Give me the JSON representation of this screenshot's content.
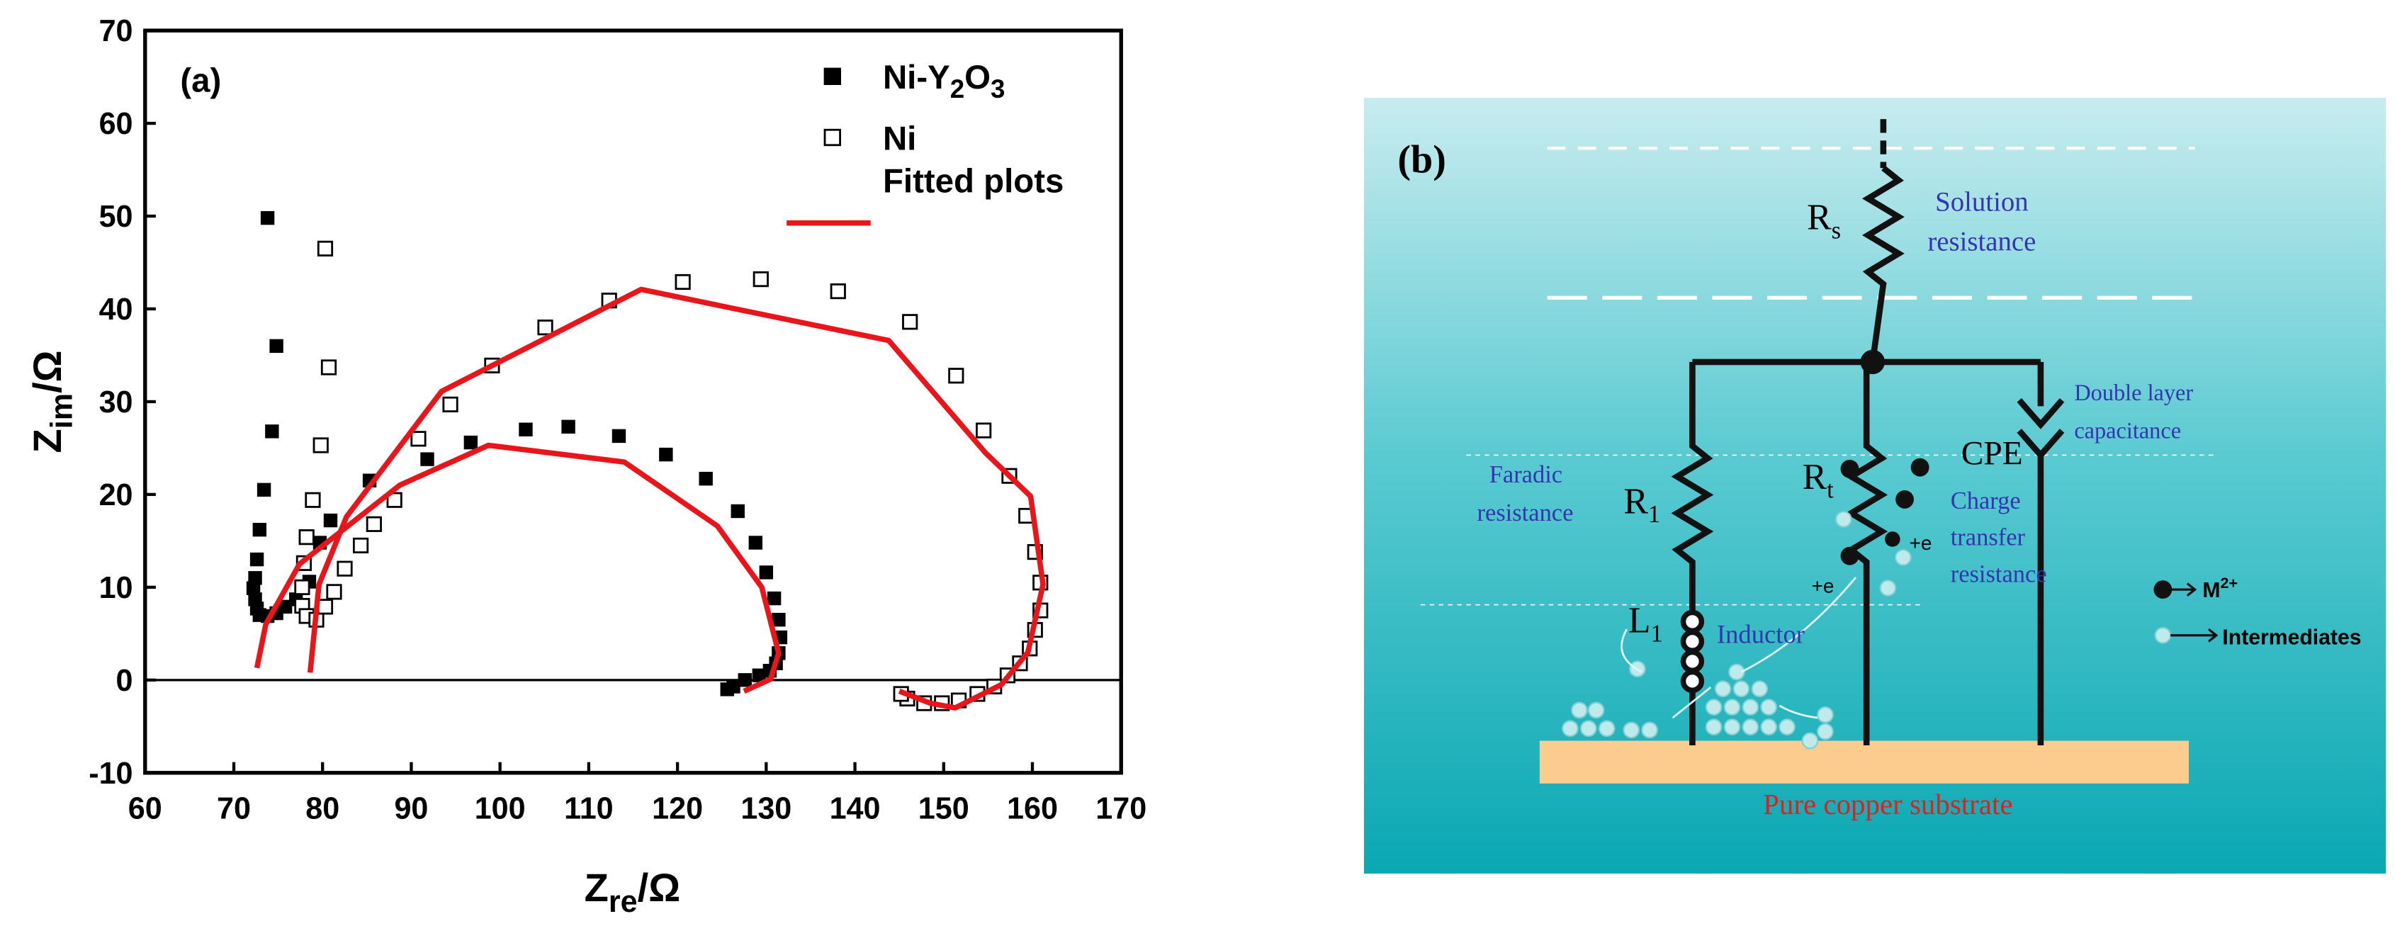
{
  "chart_data": {
    "type": "scatter",
    "title": "(a)",
    "xlabel": [
      "Z",
      "re",
      "/Ω"
    ],
    "ylabel": [
      "Z",
      "im",
      "/Ω"
    ],
    "xlim": [
      60,
      170
    ],
    "xticks": [
      60,
      70,
      80,
      90,
      100,
      110,
      120,
      130,
      140,
      150,
      160,
      170
    ],
    "ylim": [
      -10,
      70
    ],
    "yticks": [
      -10,
      0,
      10,
      20,
      30,
      40,
      50,
      60,
      70
    ],
    "reference_line_y": 0,
    "legend": "upper right",
    "series": [
      {
        "name": "Ni-Y2O3",
        "color": "#000000",
        "marker": "filled-square",
        "x": [
          73.8,
          74.8,
          74.3,
          73.4,
          72.9,
          72.6,
          72.4,
          72.2,
          72.4,
          72.6,
          72.9,
          73.8,
          74.8,
          75.8,
          77.0,
          78.5,
          79.7,
          80.9,
          85.3,
          91.8,
          96.7,
          102.9,
          107.7,
          113.4,
          118.7,
          123.2,
          126.8,
          128.8,
          130.0,
          130.9,
          131.4,
          131.6,
          131.4,
          131.1,
          130.4,
          129.2,
          127.6,
          126.3,
          125.6
        ],
        "values": [
          49.8,
          36.0,
          26.8,
          20.5,
          16.2,
          13.0,
          11.0,
          9.9,
          8.7,
          7.7,
          7.0,
          6.9,
          7.2,
          7.9,
          8.7,
          10.6,
          14.8,
          17.2,
          21.5,
          23.8,
          25.6,
          27.0,
          27.3,
          26.3,
          24.3,
          21.7,
          18.2,
          14.8,
          11.6,
          8.8,
          6.5,
          4.6,
          2.9,
          1.8,
          1.0,
          0.5,
          0.0,
          -0.7,
          -1.0
        ]
      },
      {
        "name": "Ni",
        "color": "#000000",
        "marker": "open-square",
        "x": [
          80.3,
          80.7,
          79.8,
          78.9,
          78.2,
          77.9,
          77.7,
          77.7,
          78.2,
          79.3,
          80.3,
          81.3,
          82.5,
          84.3,
          85.8,
          88.1,
          90.8,
          94.4,
          99.1,
          105.1,
          112.3,
          120.6,
          129.4,
          138.1,
          146.2,
          151.4,
          154.5,
          157.4,
          159.3,
          160.3,
          160.9,
          160.9,
          160.3,
          159.7,
          158.6,
          157.2,
          155.7,
          153.8,
          151.7,
          149.8,
          147.8,
          145.9,
          145.2
        ],
        "values": [
          46.5,
          33.7,
          25.3,
          19.4,
          15.4,
          12.6,
          10.0,
          8.0,
          6.9,
          6.5,
          7.9,
          9.5,
          12.0,
          14.5,
          16.8,
          19.4,
          26.0,
          29.7,
          33.9,
          38.0,
          40.9,
          42.9,
          43.2,
          41.9,
          38.6,
          32.8,
          26.9,
          22.0,
          17.7,
          13.8,
          10.5,
          7.5,
          5.4,
          3.4,
          1.8,
          0.5,
          -0.7,
          -1.5,
          -2.2,
          -2.5,
          -2.5,
          -2.0,
          -1.5
        ]
      },
      {
        "name": "Fitted plots",
        "color": "#e8161b",
        "marker": "line",
        "x": [
          72.6,
          73.6,
          77.4,
          88.7,
          98.7,
          114.0,
          124.5,
          129.5,
          131.4,
          130.5,
          127.5,
          null,
          78.6,
          79.6,
          82.7,
          93.4,
          115.9,
          143.8,
          154.7,
          159.8,
          161.2,
          159.5,
          156.5,
          151.3,
          148.5,
          145.0
        ],
        "values": [
          1.3,
          6.0,
          12.5,
          21.0,
          25.3,
          23.5,
          16.6,
          10.0,
          2.9,
          0.1,
          -1.2,
          null,
          0.8,
          10.3,
          17.6,
          31.1,
          42.1,
          36.6,
          24.5,
          19.8,
          10.3,
          3.0,
          -0.5,
          -3.0,
          -2.5,
          -1.2
        ]
      }
    ]
  },
  "diagram": {
    "label": "(b)",
    "rs": [
      "R",
      "s"
    ],
    "solution": [
      "Solution",
      "resistance"
    ],
    "double_layer": [
      "Double layer",
      "capacitance"
    ],
    "cpe": "CPE",
    "faradic": [
      "Faradic",
      "resistance"
    ],
    "r1": [
      "R",
      "1"
    ],
    "rt": [
      "R",
      "t"
    ],
    "charge": [
      "Charge",
      "transfer",
      "resistance"
    ],
    "electrons": [
      "+e",
      "+e"
    ],
    "l1": [
      "L",
      "1"
    ],
    "inductor": "Inductor",
    "legend_ion": [
      "M",
      "2+"
    ],
    "legend_intermediates": "Intermediates",
    "substrate": "Pure copper substrate"
  }
}
